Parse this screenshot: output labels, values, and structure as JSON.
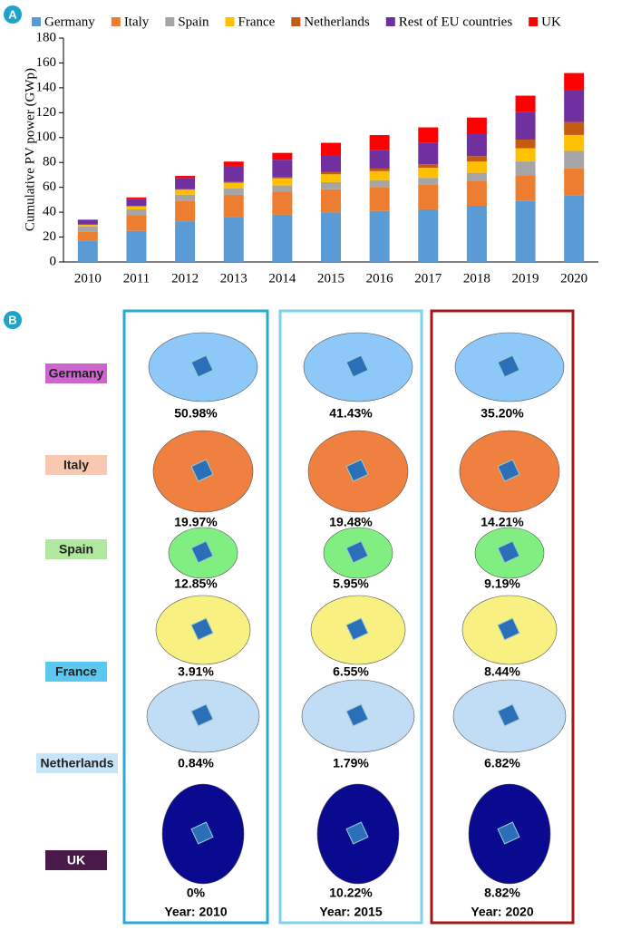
{
  "chart_data": {
    "type": "bar",
    "stacked": true,
    "panel_label": "A",
    "y_label": "Cumulative PV power (GWp)",
    "categories": [
      "2010",
      "2011",
      "2012",
      "2013",
      "2014",
      "2015",
      "2016",
      "2017",
      "2018",
      "2019",
      "2020"
    ],
    "ylim": [
      0,
      180
    ],
    "yticks": [
      0,
      20,
      40,
      60,
      80,
      100,
      120,
      140,
      160,
      180
    ],
    "grid": false,
    "series": [
      {
        "name": "Germany",
        "color": "#5b9bd5",
        "values": [
          17.3,
          25,
          32.7,
          36,
          38,
          39.8,
          41,
          42.3,
          45.2,
          49,
          53.7
        ]
      },
      {
        "name": "Italy",
        "color": "#ed7d31",
        "values": [
          6.8,
          12.8,
          16.4,
          18,
          18.5,
          18.7,
          19.3,
          19.7,
          20.1,
          20.8,
          21.6
        ]
      },
      {
        "name": "Spain",
        "color": "#a5a5a5",
        "values": [
          4.4,
          4.5,
          5,
          5,
          5,
          5.7,
          5.5,
          5.6,
          6.4,
          11,
          14
        ]
      },
      {
        "name": "France",
        "color": "#ffc000",
        "values": [
          1.3,
          2.5,
          4,
          4.6,
          5.7,
          6.3,
          7.2,
          8.1,
          9,
          10.6,
          12.8
        ]
      },
      {
        "name": "Netherlands",
        "color": "#c55a11",
        "values": [
          0.3,
          0.1,
          0.4,
          0.7,
          1,
          1.7,
          2.1,
          2.9,
          4.4,
          7,
          10.4
        ]
      },
      {
        "name": "Rest of EU countries",
        "color": "#7030a0",
        "values": [
          3.9,
          6,
          9,
          13,
          14,
          13.8,
          15,
          17,
          18,
          22,
          26
        ]
      },
      {
        "name": "UK",
        "color": "#ff0000",
        "values": [
          0,
          1,
          1.7,
          3.4,
          5.5,
          9.8,
          11.9,
          12.6,
          13,
          13.3,
          13.4
        ]
      }
    ]
  },
  "panel_b": {
    "panel_label": "B",
    "countries": [
      "Germany",
      "Italy",
      "Spain",
      "France",
      "Netherlands",
      "UK"
    ],
    "columns": [
      {
        "year": "Year: 2010",
        "values": [
          "50.98%",
          "19.97%",
          "12.85%",
          "3.91%",
          "0.84%",
          "0%"
        ]
      },
      {
        "year": "Year: 2015",
        "values": [
          "41.43%",
          "19.48%",
          "5.95%",
          "6.55%",
          "1.79%",
          "10.22%"
        ]
      },
      {
        "year": "Year: 2020",
        "values": [
          "35.20%",
          "14.21%",
          "9.19%",
          "8.44%",
          "6.82%",
          "8.82%"
        ]
      }
    ]
  }
}
